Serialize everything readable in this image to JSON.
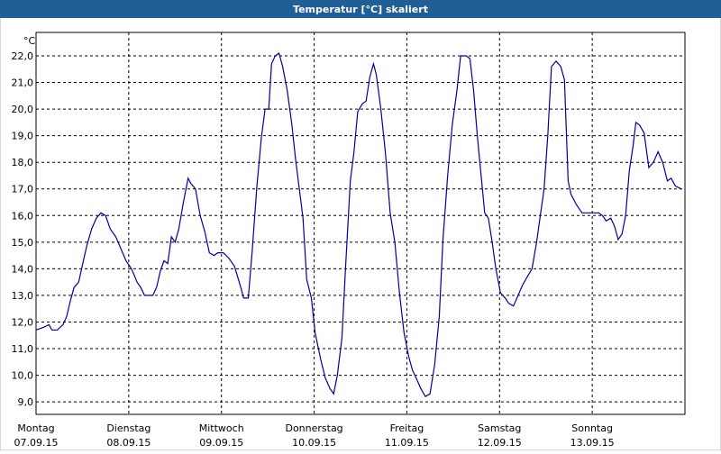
{
  "chart_data": {
    "type": "line",
    "title": "Temperatur [°C] skaliert",
    "y_unit": "°C",
    "xlim": [
      0,
      7
    ],
    "ylim": [
      8.53,
      22.88
    ],
    "xticks": [
      {
        "value": 0,
        "label": "Montag",
        "date": "07.09.15"
      },
      {
        "value": 1,
        "label": "Dienstag",
        "date": "08.09.15"
      },
      {
        "value": 2,
        "label": "Mittwoch",
        "date": "09.09.15"
      },
      {
        "value": 3,
        "label": "Donnerstag",
        "date": "10.09.15"
      },
      {
        "value": 4,
        "label": "Freitag",
        "date": "11.09.15"
      },
      {
        "value": 5,
        "label": "Samstag",
        "date": "12.09.15"
      },
      {
        "value": 6,
        "label": "Sonntag",
        "date": "13.09.15"
      }
    ],
    "yticks": [
      {
        "value": 9,
        "label": "9,0"
      },
      {
        "value": 10,
        "label": "10,0"
      },
      {
        "value": 11,
        "label": "11,0"
      },
      {
        "value": 12,
        "label": "12,0"
      },
      {
        "value": 13,
        "label": "13,0"
      },
      {
        "value": 14,
        "label": "14,0"
      },
      {
        "value": 15,
        "label": "15,0"
      },
      {
        "value": 16,
        "label": "16,0"
      },
      {
        "value": 17,
        "label": "17,0"
      },
      {
        "value": 18,
        "label": "18,0"
      },
      {
        "value": 19,
        "label": "19,0"
      },
      {
        "value": 20,
        "label": "20,0"
      },
      {
        "value": 21,
        "label": "21,0"
      },
      {
        "value": 22,
        "label": "22,0"
      }
    ],
    "grid": true,
    "color": "#0000a0",
    "x": [
      0,
      0.08,
      0.14,
      0.17,
      0.23,
      0.29,
      0.33,
      0.37,
      0.41,
      0.46,
      0.51,
      0.55,
      0.6,
      0.65,
      0.7,
      0.75,
      0.8,
      0.86,
      0.91,
      0.97,
      1.03,
      1.09,
      1.13,
      1.17,
      1.22,
      1.26,
      1.3,
      1.34,
      1.38,
      1.42,
      1.46,
      1.5,
      1.54,
      1.59,
      1.64,
      1.67,
      1.72,
      1.77,
      1.82,
      1.87,
      1.92,
      1.96,
      2.02,
      2.08,
      2.14,
      2.2,
      2.24,
      2.29,
      2.33,
      2.38,
      2.43,
      2.47,
      2.51,
      2.54,
      2.58,
      2.62,
      2.66,
      2.71,
      2.76,
      2.8,
      2.84,
      2.88,
      2.92,
      2.97,
      3.01,
      3.07,
      3.12,
      3.17,
      3.21,
      3.25,
      3.3,
      3.34,
      3.39,
      3.43,
      3.47,
      3.52,
      3.56,
      3.6,
      3.64,
      3.67,
      3.72,
      3.77,
      3.82,
      3.87,
      3.92,
      3.97,
      4.02,
      4.06,
      4.1,
      4.15,
      4.2,
      4.25,
      4.3,
      4.35,
      4.39,
      4.44,
      4.49,
      4.54,
      4.58,
      4.64,
      4.68,
      4.72,
      4.76,
      4.81,
      4.84,
      4.88,
      4.92,
      4.96,
      5.01,
      5.06,
      5.1,
      5.15,
      5.2,
      5.25,
      5.3,
      5.35,
      5.4,
      5.44,
      5.48,
      5.52,
      5.56,
      5.61,
      5.66,
      5.7,
      5.74,
      5.77,
      5.83,
      5.89,
      5.95,
      6.01,
      6.07,
      6.11,
      6.15,
      6.2,
      6.24,
      6.28,
      6.32,
      6.36,
      6.4,
      6.44,
      6.47,
      6.51,
      6.56,
      6.61,
      6.66,
      6.71,
      6.76,
      6.81,
      6.85,
      6.9,
      6.96
    ],
    "values": [
      11.7,
      11.8,
      11.9,
      11.7,
      11.7,
      11.9,
      12.2,
      12.8,
      13.3,
      13.5,
      14.3,
      14.9,
      15.5,
      15.9,
      16.1,
      16.0,
      15.5,
      15.2,
      14.8,
      14.3,
      14.0,
      13.5,
      13.3,
      13.0,
      13.0,
      13.0,
      13.3,
      13.9,
      14.3,
      14.2,
      15.2,
      15.0,
      15.5,
      16.5,
      17.4,
      17.2,
      17.0,
      16.0,
      15.4,
      14.6,
      14.5,
      14.6,
      14.6,
      14.4,
      14.1,
      13.4,
      12.9,
      12.9,
      14.6,
      17.0,
      18.9,
      20.0,
      20.0,
      21.7,
      22.0,
      22.1,
      21.6,
      20.7,
      19.4,
      18.1,
      17.0,
      15.9,
      13.6,
      12.9,
      11.6,
      10.6,
      9.9,
      9.5,
      9.3,
      10.0,
      11.4,
      14.1,
      17.3,
      18.4,
      19.9,
      20.2,
      20.3,
      21.2,
      21.7,
      21.3,
      20.0,
      18.3,
      16.1,
      15.0,
      13.1,
      11.6,
      10.7,
      10.2,
      9.9,
      9.5,
      9.2,
      9.3,
      10.4,
      12.2,
      15.1,
      17.5,
      19.4,
      20.7,
      22.0,
      22.0,
      21.9,
      20.7,
      19.0,
      17.2,
      16.1,
      15.9,
      15.0,
      14.0,
      13.1,
      12.9,
      12.7,
      12.6,
      13.0,
      13.4,
      13.7,
      14.0,
      15.0,
      16.0,
      17.0,
      19.0,
      21.6,
      21.8,
      21.6,
      21.1,
      17.3,
      16.8,
      16.4,
      16.1,
      16.1,
      16.1,
      16.1,
      16.0,
      15.8,
      15.9,
      15.6,
      15.1,
      15.3,
      16.0,
      17.7,
      18.6,
      19.5,
      19.4,
      19.1,
      17.8,
      18.0,
      18.4,
      18.0,
      17.3,
      17.4,
      17.1,
      17.0
    ]
  }
}
